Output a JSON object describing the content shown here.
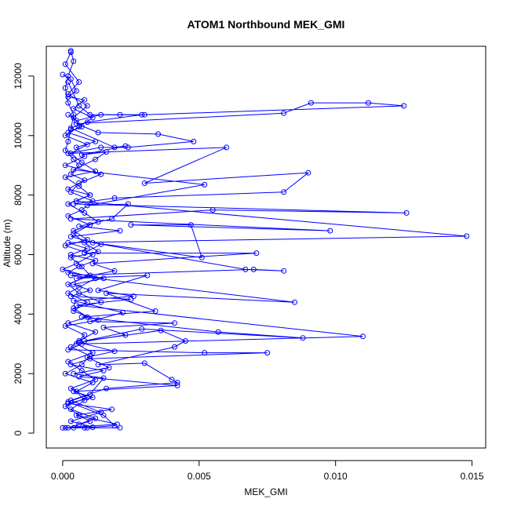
{
  "chart_data": {
    "type": "line",
    "title": "ATOM1 Northbound MEK_GMI",
    "xlabel": "MEK_GMI",
    "ylabel": "Altitude (m)",
    "xlim": [
      -0.0006,
      0.0155
    ],
    "ylim": [
      -500,
      13000
    ],
    "x_ticks": [
      0.0,
      0.005,
      0.01,
      0.015
    ],
    "x_tick_labels": [
      "0.000",
      "0.005",
      "0.010",
      "0.015"
    ],
    "y_ticks": [
      0,
      2000,
      4000,
      6000,
      8000,
      10000,
      12000
    ],
    "y_tick_labels": [
      "0",
      "2000",
      "4000",
      "6000",
      "8000",
      "10000",
      "12000"
    ],
    "grid": false,
    "color": "#0000ff",
    "marker": "open-circle",
    "series": [
      {
        "values": [
          [
            0.0003,
            12850
          ],
          [
            0.0004,
            12500
          ],
          [
            0.0002,
            12000
          ],
          [
            0.0001,
            11600
          ],
          [
            0.0002,
            11100
          ],
          [
            0.0004,
            10700
          ],
          [
            0.0003,
            10200
          ],
          [
            0.0002,
            9800
          ],
          [
            0.0001,
            9500
          ],
          [
            0.0004,
            9200
          ],
          [
            0.0006,
            9000
          ],
          [
            0.0003,
            8700
          ],
          [
            0.0008,
            8500
          ],
          [
            0.0002,
            8200
          ],
          [
            0.001,
            8000
          ],
          [
            0.0005,
            7800
          ],
          [
            0.0148,
            6620
          ],
          [
            0.0002,
            6400
          ],
          [
            0.0009,
            6200
          ],
          [
            0.0003,
            6000
          ],
          [
            0.0012,
            5800
          ],
          [
            0.0006,
            5600
          ],
          [
            0.0002,
            5400
          ],
          [
            0.0015,
            5200
          ],
          [
            0.0004,
            5000
          ],
          [
            0.001,
            4800
          ],
          [
            0.0003,
            4600
          ],
          [
            0.0025,
            4500
          ],
          [
            0.0005,
            4300
          ],
          [
            0.011,
            3250
          ],
          [
            0.0007,
            3000
          ],
          [
            0.0002,
            2800
          ],
          [
            0.0052,
            2700
          ],
          [
            0.0075,
            2700
          ],
          [
            0.001,
            2500
          ],
          [
            0.0003,
            2300
          ],
          [
            0.0015,
            2100
          ],
          [
            0.0006,
            1900
          ],
          [
            0.0042,
            1600
          ],
          [
            0.0004,
            1400
          ],
          [
            0.0011,
            1200
          ],
          [
            0.0002,
            1000
          ],
          [
            0.0018,
            800
          ],
          [
            0.0005,
            600
          ],
          [
            0.002,
            300
          ],
          [
            0.0001,
            180
          ],
          [
            0.0009,
            180
          ],
          [
            0.0021,
            180
          ]
        ]
      },
      {
        "values": [
          [
            0.0002,
            11800
          ],
          [
            0.0006,
            11000
          ],
          [
            0.001,
            10700
          ],
          [
            0.003,
            10700
          ],
          [
            0.0125,
            11000
          ],
          [
            0.0112,
            11100
          ],
          [
            0.0091,
            11100
          ],
          [
            0.0081,
            10750
          ],
          [
            0.0005,
            10400
          ],
          [
            0.0013,
            10100
          ],
          [
            0.0035,
            10050
          ],
          [
            0.0048,
            9800
          ],
          [
            0.0024,
            9600
          ],
          [
            0.0014,
            9600
          ],
          [
            0.0002,
            9400
          ],
          [
            0.006,
            9600
          ],
          [
            0.003,
            8400
          ],
          [
            0.009,
            8750
          ],
          [
            0.0081,
            8100
          ],
          [
            0.0019,
            7900
          ],
          [
            0.0004,
            7700
          ],
          [
            0.0126,
            7400
          ],
          [
            0.0055,
            7500
          ],
          [
            0.0003,
            7200
          ],
          [
            0.0098,
            6800
          ],
          [
            0.0025,
            7000
          ],
          [
            0.0047,
            7000
          ],
          [
            0.0051,
            5900
          ],
          [
            0.0011,
            6400
          ],
          [
            0.0067,
            5500
          ],
          [
            0.0081,
            5450
          ],
          [
            0.007,
            5500
          ],
          [
            0.0003,
            5300
          ],
          [
            0.0085,
            4400
          ],
          [
            0.0016,
            4700
          ],
          [
            0.0034,
            4100
          ],
          [
            0.0007,
            3900
          ],
          [
            0.0057,
            3400
          ],
          [
            0.0088,
            3200
          ],
          [
            0.0029,
            3500
          ],
          [
            0.0008,
            3100
          ],
          [
            0.0036,
            3450
          ],
          [
            0.0045,
            3100
          ],
          [
            0.0041,
            2900
          ],
          [
            0.0013,
            2300
          ],
          [
            0.003,
            2350
          ],
          [
            0.004,
            1800
          ],
          [
            0.0042,
            1700
          ],
          [
            0.0016,
            1500
          ],
          [
            0.0003,
            1100
          ],
          [
            0.0014,
            700
          ],
          [
            0.0003,
            400
          ],
          [
            0.0011,
            200
          ],
          [
            0.0,
            180
          ]
        ]
      },
      {
        "values": [
          [
            0.0,
            12050
          ],
          [
            0.0003,
            11900
          ],
          [
            0.0005,
            11500
          ],
          [
            0.0002,
            11300
          ],
          [
            0.0008,
            11200
          ],
          [
            0.0004,
            10900
          ],
          [
            0.0011,
            10600
          ],
          [
            0.0006,
            10300
          ],
          [
            0.0001,
            10000
          ],
          [
            0.0009,
            9700
          ],
          [
            0.0003,
            9400
          ],
          [
            0.0007,
            9100
          ],
          [
            0.0012,
            8800
          ],
          [
            0.0001,
            8600
          ],
          [
            0.0006,
            8300
          ],
          [
            0.001,
            8000
          ],
          [
            0.0002,
            7700
          ],
          [
            0.0008,
            7400
          ],
          [
            0.0013,
            7100
          ],
          [
            0.0004,
            6800
          ],
          [
            0.0009,
            6500
          ],
          [
            0.0001,
            6300
          ],
          [
            0.0011,
            6000
          ],
          [
            0.0005,
            5700
          ],
          [
            0.0,
            5500
          ],
          [
            0.0012,
            5200
          ],
          [
            0.0006,
            4900
          ],
          [
            0.0002,
            4700
          ],
          [
            0.0009,
            4400
          ],
          [
            0.0004,
            4100
          ],
          [
            0.0013,
            3800
          ],
          [
            0.0001,
            3600
          ],
          [
            0.0008,
            3300
          ],
          [
            0.0005,
            3000
          ],
          [
            0.0011,
            2700
          ],
          [
            0.0002,
            2400
          ],
          [
            0.0007,
            2100
          ],
          [
            0.0012,
            1800
          ],
          [
            0.0003,
            1500
          ],
          [
            0.0009,
            1200
          ],
          [
            0.0001,
            900
          ],
          [
            0.0006,
            600
          ],
          [
            0.001,
            400
          ],
          [
            0.0002,
            180
          ]
        ]
      },
      {
        "values": [
          [
            0.0003,
            12800
          ],
          [
            0.0001,
            12400
          ],
          [
            0.0006,
            11800
          ],
          [
            0.0002,
            11400
          ],
          [
            0.0009,
            11000
          ],
          [
            0.0004,
            10600
          ],
          [
            0.0007,
            10300
          ],
          [
            0.0002,
            10100
          ],
          [
            0.0012,
            9800
          ],
          [
            0.0005,
            9600
          ],
          [
            0.0008,
            9300
          ],
          [
            0.0001,
            9000
          ],
          [
            0.0014,
            8700
          ],
          [
            0.0006,
            8400
          ],
          [
            0.0003,
            8100
          ],
          [
            0.0011,
            7800
          ],
          [
            0.0007,
            7500
          ],
          [
            0.0002,
            7300
          ],
          [
            0.001,
            7000
          ],
          [
            0.0004,
            6700
          ],
          [
            0.0008,
            6400
          ],
          [
            0.0013,
            6100
          ],
          [
            0.0003,
            5900
          ],
          [
            0.0007,
            5600
          ],
          [
            0.001,
            5300
          ],
          [
            0.0002,
            5000
          ],
          [
            0.0006,
            4700
          ],
          [
            0.0014,
            4400
          ],
          [
            0.0004,
            4200
          ],
          [
            0.0009,
            3900
          ],
          [
            0.0002,
            3700
          ],
          [
            0.0012,
            3400
          ],
          [
            0.0006,
            3100
          ],
          [
            0.0003,
            2900
          ],
          [
            0.001,
            2600
          ],
          [
            0.0007,
            2300
          ],
          [
            0.0001,
            2000
          ],
          [
            0.0011,
            1700
          ],
          [
            0.0005,
            1400
          ],
          [
            0.0008,
            1100
          ],
          [
            0.0003,
            800
          ],
          [
            0.0012,
            500
          ],
          [
            0.0006,
            300
          ],
          [
            0.0004,
            180
          ]
        ]
      },
      {
        "values": [
          [
            0.0002,
            10700
          ],
          [
            0.0005,
            10500
          ],
          [
            0.0014,
            10700
          ],
          [
            0.0021,
            10700
          ],
          [
            0.0029,
            10700
          ],
          [
            0.0009,
            10450
          ],
          [
            0.0003,
            10250
          ],
          [
            0.0019,
            9600
          ],
          [
            0.0023,
            9650
          ],
          [
            0.0007,
            9350
          ],
          [
            0.0016,
            9450
          ],
          [
            0.0012,
            9200
          ],
          [
            0.0004,
            8850
          ],
          [
            0.0052,
            8350
          ],
          [
            0.0009,
            7650
          ],
          [
            0.0024,
            7700
          ],
          [
            0.0018,
            7200
          ],
          [
            0.0006,
            6950
          ],
          [
            0.0021,
            6800
          ],
          [
            0.0003,
            6600
          ],
          [
            0.0014,
            6350
          ],
          [
            0.0008,
            6050
          ],
          [
            0.0071,
            6050
          ],
          [
            0.0011,
            5700
          ],
          [
            0.0019,
            5450
          ],
          [
            0.0005,
            5200
          ],
          [
            0.0031,
            5300
          ],
          [
            0.0013,
            4800
          ],
          [
            0.0026,
            4600
          ],
          [
            0.0004,
            4450
          ],
          [
            0.0022,
            4050
          ],
          [
            0.001,
            3750
          ],
          [
            0.0041,
            3700
          ],
          [
            0.0015,
            3550
          ],
          [
            0.0023,
            3300
          ],
          [
            0.0006,
            3050
          ],
          [
            0.0019,
            2750
          ],
          [
            0.0009,
            2550
          ],
          [
            0.0017,
            2200
          ],
          [
            0.0004,
            2000
          ],
          [
            0.0015,
            1850
          ],
          [
            0.001,
            1300
          ],
          [
            0.0002,
            1050
          ],
          [
            0.0015,
            600
          ],
          [
            0.0019,
            250
          ],
          [
            0.0008,
            180
          ]
        ]
      }
    ]
  }
}
